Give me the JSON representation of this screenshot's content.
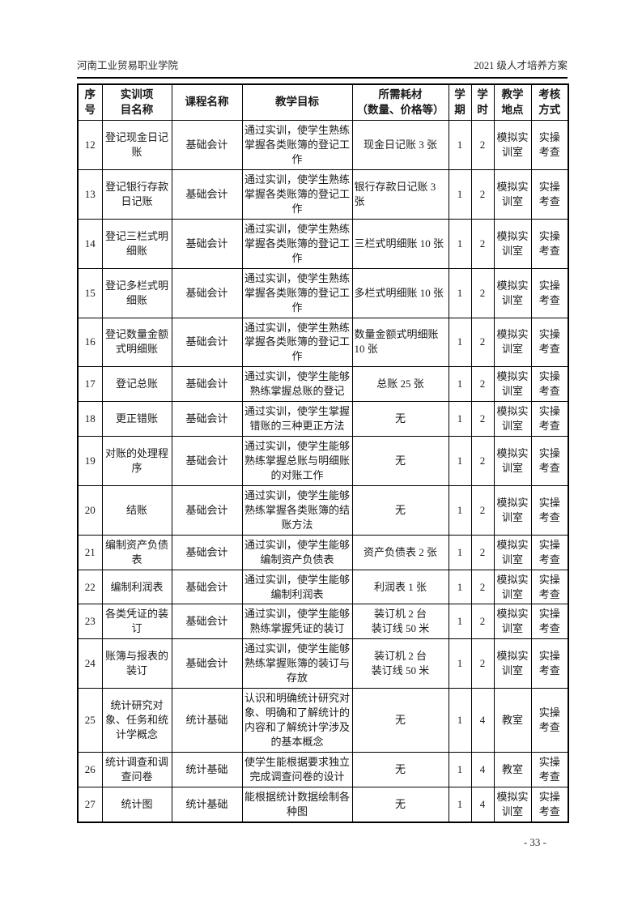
{
  "header": {
    "school": "河南工业贸易职业学院",
    "plan": "2021 级人才培养方案"
  },
  "footer": {
    "page_number": "- 33 -"
  },
  "table": {
    "columns": [
      {
        "key": "no",
        "label": "序\n号"
      },
      {
        "key": "project",
        "label": "实训项\n目名称"
      },
      {
        "key": "course",
        "label": "课程名称"
      },
      {
        "key": "goal",
        "label": "教学目标"
      },
      {
        "key": "materials",
        "label": "所需耗材\n（数量、价格等）"
      },
      {
        "key": "semester",
        "label": "学\n期"
      },
      {
        "key": "hours",
        "label": "学\n时"
      },
      {
        "key": "location",
        "label": "教学\n地点"
      },
      {
        "key": "assessment",
        "label": "考核\n方式"
      }
    ],
    "rows": [
      {
        "no": "12",
        "project": "登记现金日记账",
        "course": "基础会计",
        "goal": "通过实训，使学生熟练掌握各类账簿的登记工作",
        "materials": "现金日记账 3 张",
        "semester": "1",
        "hours": "2",
        "location": "模拟实训室",
        "assessment": "实操\n考查"
      },
      {
        "no": "13",
        "project": "登记银行存款日记账",
        "course": "基础会计",
        "goal": "通过实训，使学生熟练掌握各类账簿的登记工作",
        "materials": "银行存款日记账 3 张",
        "semester": "1",
        "hours": "2",
        "location": "模拟实训室",
        "assessment": "实操\n考查"
      },
      {
        "no": "14",
        "project": "登记三栏式明细账",
        "course": "基础会计",
        "goal": "通过实训，使学生熟练掌握各类账簿的登记工作",
        "materials": "三栏式明细账 10 张",
        "semester": "1",
        "hours": "2",
        "location": "模拟实训室",
        "assessment": "实操\n考查"
      },
      {
        "no": "15",
        "project": "登记多栏式明细账",
        "course": "基础会计",
        "goal": "通过实训，使学生熟练掌握各类账簿的登记工作",
        "materials": "多栏式明细账 10 张",
        "semester": "1",
        "hours": "2",
        "location": "模拟实训室",
        "assessment": "实操\n考查"
      },
      {
        "no": "16",
        "project": "登记数量金额式明细账",
        "course": "基础会计",
        "goal": "通过实训，使学生熟练掌握各类账簿的登记工作",
        "materials": "数量金额式明细账 10 张",
        "semester": "1",
        "hours": "2",
        "location": "模拟实训室",
        "assessment": "实操\n考查"
      },
      {
        "no": "17",
        "project": "登记总账",
        "course": "基础会计",
        "goal": "通过实训，使学生能够熟练掌握总账的登记",
        "materials": "总账 25 张",
        "semester": "1",
        "hours": "2",
        "location": "模拟实训室",
        "assessment": "实操\n考查"
      },
      {
        "no": "18",
        "project": "更正错账",
        "course": "基础会计",
        "goal": "通过实训，使学生掌握错账的三种更正方法",
        "materials": "无",
        "semester": "1",
        "hours": "2",
        "location": "模拟实训室",
        "assessment": "实操\n考查"
      },
      {
        "no": "19",
        "project": "对账的处理程序",
        "course": "基础会计",
        "goal": "通过实训，使学生能够熟练掌握总账与明细账的对账工作",
        "materials": "无",
        "semester": "1",
        "hours": "2",
        "location": "模拟实训室",
        "assessment": "实操\n考查"
      },
      {
        "no": "20",
        "project": "结账",
        "course": "基础会计",
        "goal": "通过实训，使学生能够熟练掌握各类账簿的结账方法",
        "materials": "无",
        "semester": "1",
        "hours": "2",
        "location": "模拟实训室",
        "assessment": "实操\n考查"
      },
      {
        "no": "21",
        "project": "编制资产负债表",
        "course": "基础会计",
        "goal": "通过实训，使学生能够编制资产负债表",
        "materials": "资产负债表 2 张",
        "semester": "1",
        "hours": "2",
        "location": "模拟实训室",
        "assessment": "实操\n考查"
      },
      {
        "no": "22",
        "project": "编制利润表",
        "course": "基础会计",
        "goal": "通过实训，使学生能够编制利润表",
        "materials": "利润表 1 张",
        "semester": "1",
        "hours": "2",
        "location": "模拟实训室",
        "assessment": "实操\n考查"
      },
      {
        "no": "23",
        "project": "各类凭证的装订",
        "course": "基础会计",
        "goal": "通过实训，使学生能够熟练掌握凭证的装订",
        "materials": "装订机 2 台\n装订线 50 米",
        "semester": "1",
        "hours": "2",
        "location": "模拟实训室",
        "assessment": "实操\n考查"
      },
      {
        "no": "24",
        "project": "账簿与报表的装订",
        "course": "基础会计",
        "goal": "通过实训，使学生能够熟练掌握账簿的装订与存放",
        "materials": "装订机 2 台\n装订线 50 米",
        "semester": "1",
        "hours": "2",
        "location": "模拟实训室",
        "assessment": "实操\n考查"
      },
      {
        "no": "25",
        "project": "统计研究对象、任务和统计学概念",
        "course": "统计基础",
        "goal": "认识和明确统计研究对象、明确和了解统计的内容和了解统计学涉及的基本概念",
        "materials": "无",
        "semester": "1",
        "hours": "4",
        "location": "教室",
        "assessment": "实操\n考查"
      },
      {
        "no": "26",
        "project": "统计调查和调查问卷",
        "course": "统计基础",
        "goal": "使学生能根据要求独立完成调查问卷的设计",
        "materials": "无",
        "semester": "1",
        "hours": "4",
        "location": "教室",
        "assessment": "实操\n考查"
      },
      {
        "no": "27",
        "project": "统计图",
        "course": "统计基础",
        "goal": "能根据统计数据绘制各种图",
        "materials": "无",
        "semester": "1",
        "hours": "4",
        "location": "模拟实训室",
        "assessment": "实操\n考查"
      }
    ]
  }
}
